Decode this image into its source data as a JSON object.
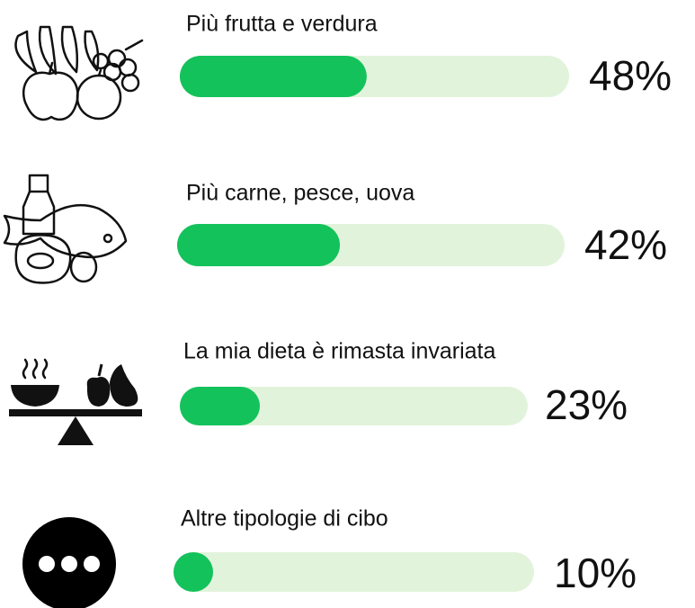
{
  "chart_data": {
    "type": "bar",
    "categories": [
      "Più frutta e verdura",
      "Più carne, pesce, uova",
      "La mia dieta è rimasta invariata",
      "Altre tipologie di cibo"
    ],
    "values": [
      48,
      42,
      23,
      10
    ],
    "value_labels": [
      "48%",
      "42%",
      "23%",
      "10%"
    ],
    "xlim": [
      0,
      100
    ],
    "color": "#13c25b",
    "track_color": "#e2f3dc"
  }
}
